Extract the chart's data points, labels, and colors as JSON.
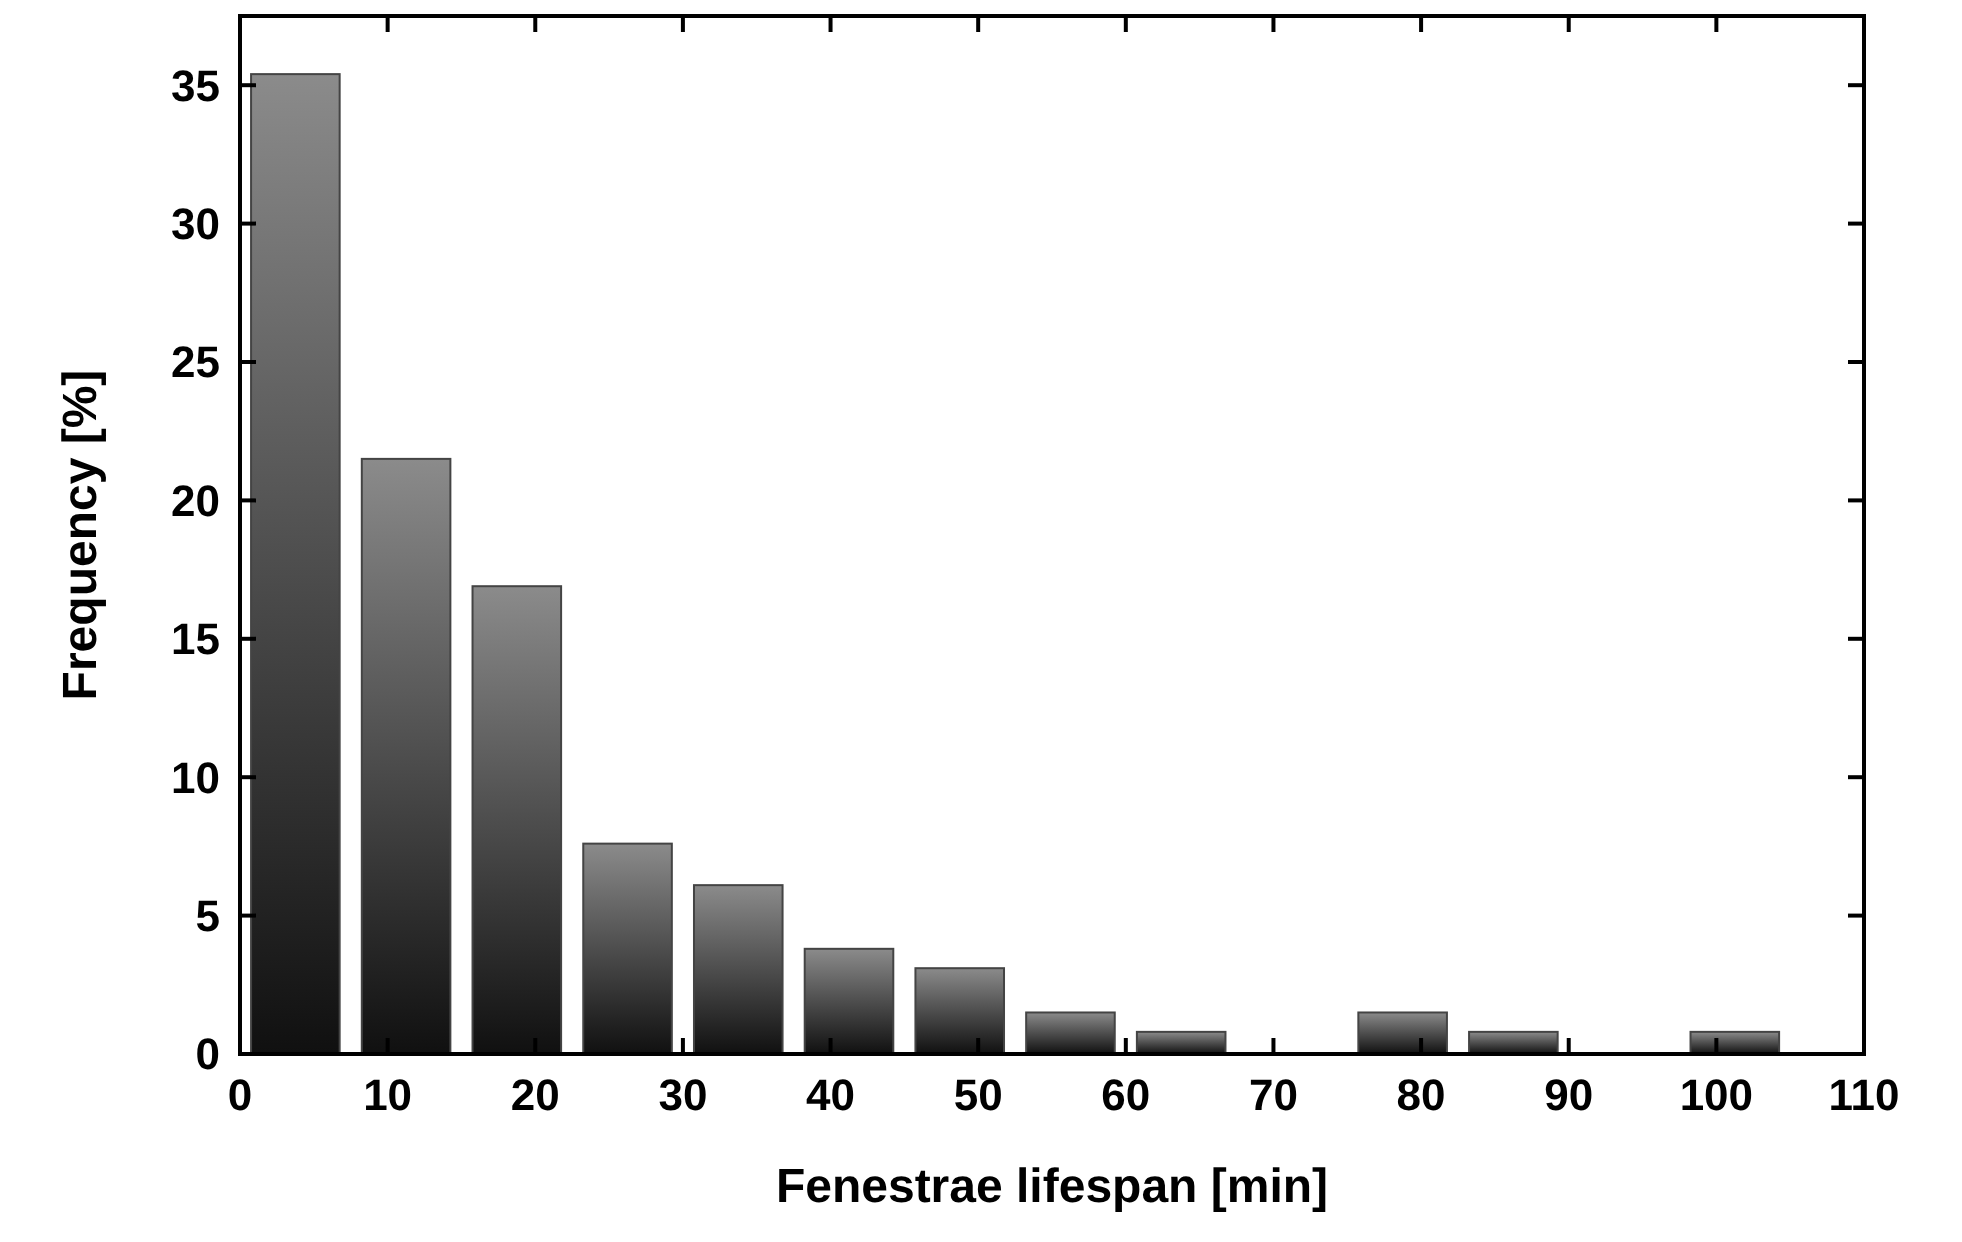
{
  "chart_data": {
    "type": "bar",
    "xlabel": "Fenestrae lifespan [min]",
    "ylabel": "Frequency [%]",
    "x": [
      3.75,
      11.25,
      18.75,
      26.25,
      33.75,
      41.25,
      48.75,
      56.25,
      63.75,
      71.25,
      78.75,
      86.25,
      93.75,
      101.25
    ],
    "values": [
      35.4,
      21.5,
      16.9,
      7.6,
      6.1,
      3.8,
      3.1,
      1.5,
      0.8,
      0,
      1.5,
      0.8,
      0,
      0.8
    ],
    "color": "#444444",
    "xlim": [
      0,
      110
    ],
    "xticks": [
      0,
      10,
      20,
      30,
      40,
      50,
      60,
      70,
      80,
      90,
      100,
      110
    ],
    "ylim": [
      0,
      37.5
    ],
    "yticks": [
      0,
      5,
      10,
      15,
      20,
      25,
      30,
      35
    ]
  }
}
